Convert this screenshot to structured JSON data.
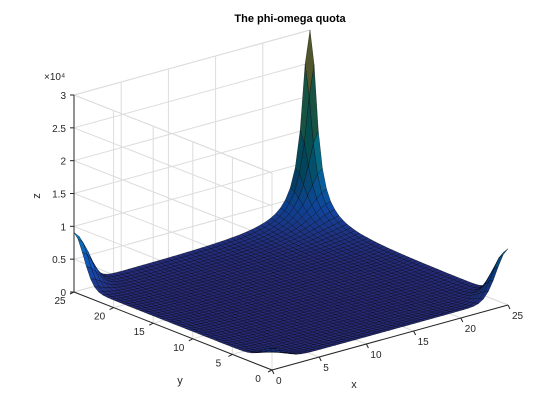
{
  "chart_data": {
    "type": "surface",
    "title": "The phi-omega quota",
    "xlabel": "x",
    "ylabel": "y",
    "zlabel": "z",
    "z_exponent_label": "×10⁴",
    "xlim": [
      0,
      25
    ],
    "ylim": [
      0,
      25
    ],
    "zlim": [
      0,
      30000
    ],
    "x_ticks": [
      "0",
      "5",
      "10",
      "15",
      "20",
      "25"
    ],
    "y_ticks": [
      "0",
      "5",
      "10",
      "15",
      "20",
      "25"
    ],
    "z_ticks": [
      "0",
      "0.5",
      "1",
      "1.5",
      "2",
      "2.5",
      "3"
    ],
    "grid": true,
    "colormap": "parula",
    "features": [
      {
        "location": [
          25,
          25
        ],
        "z": 30000,
        "shape": "sharp spike"
      },
      {
        "location": [
          0,
          25
        ],
        "z": 7500,
        "shape": "corner bump"
      },
      {
        "location": [
          25,
          0
        ],
        "z": 7000,
        "shape": "corner bump"
      },
      {
        "location": [
          0,
          0
        ],
        "z": 1800,
        "shape": "corner bump"
      }
    ],
    "baseline_z": 2500
  },
  "colors": {
    "low": "#352a87",
    "mid": "#1f9ea2",
    "high": "#a5be6a",
    "edge": "#000000"
  }
}
